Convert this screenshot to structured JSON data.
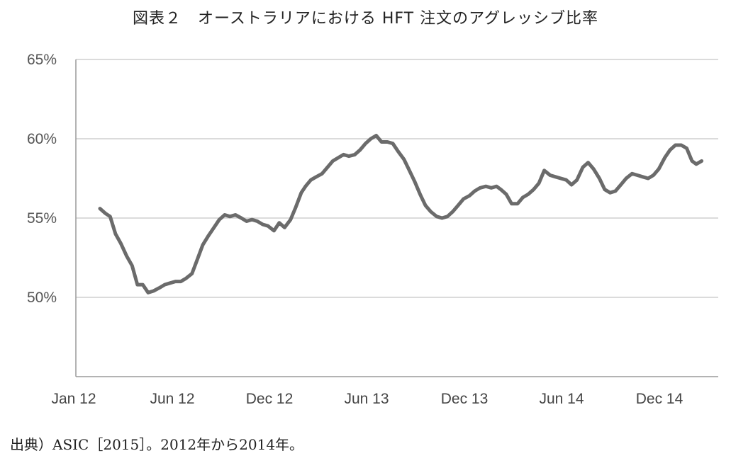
{
  "title": "図表２　オーストラリアにおける HFT 注文のアグレッシブ比率",
  "source": "出典）ASIC［2015］。2012年から2014年。",
  "chart_data": {
    "type": "line",
    "title": "",
    "xlabel": "",
    "ylabel": "",
    "ylim": [
      45,
      65
    ],
    "y_ticks": [
      50,
      55,
      60,
      65
    ],
    "y_tick_labels": [
      "50%",
      "55%",
      "60%",
      "65%"
    ],
    "x_ticks": [
      "Jan 12",
      "Jun 12",
      "Dec 12",
      "Jun 13",
      "Dec 13",
      "Jun 14",
      "Dec 14"
    ],
    "grid": true,
    "line_color": "#6b6b6b",
    "series": [
      {
        "name": "",
        "x": [
          "2012-02-15",
          "2012-02-25",
          "2012-03-05",
          "2012-03-15",
          "2012-03-25",
          "2012-04-05",
          "2012-04-15",
          "2012-04-25",
          "2012-05-05",
          "2012-05-15",
          "2012-05-25",
          "2012-06-05",
          "2012-06-15",
          "2012-06-25",
          "2012-07-05",
          "2012-07-15",
          "2012-07-25",
          "2012-08-05",
          "2012-08-15",
          "2012-08-25",
          "2012-09-05",
          "2012-09-15",
          "2012-09-25",
          "2012-10-05",
          "2012-10-15",
          "2012-10-25",
          "2012-11-05",
          "2012-11-15",
          "2012-11-25",
          "2012-12-05",
          "2012-12-15",
          "2012-12-25",
          "2013-01-05",
          "2013-01-15",
          "2013-01-25",
          "2013-02-05",
          "2013-02-15",
          "2013-02-25",
          "2013-03-05",
          "2013-03-15",
          "2013-03-25",
          "2013-04-05",
          "2013-04-15",
          "2013-04-25",
          "2013-05-05",
          "2013-05-15",
          "2013-05-25",
          "2013-06-05",
          "2013-06-15",
          "2013-06-25",
          "2013-07-05",
          "2013-07-15",
          "2013-07-25",
          "2013-08-05",
          "2013-08-15",
          "2013-08-25",
          "2013-09-05",
          "2013-09-15",
          "2013-09-25",
          "2013-10-05",
          "2013-10-15",
          "2013-10-25",
          "2013-11-05",
          "2013-11-15",
          "2013-11-25",
          "2013-12-05",
          "2013-12-15",
          "2013-12-25",
          "2014-01-05",
          "2014-01-15",
          "2014-01-25",
          "2014-02-05",
          "2014-02-15",
          "2014-02-25",
          "2014-03-05",
          "2014-03-15",
          "2014-03-25",
          "2014-04-05",
          "2014-04-15",
          "2014-04-25",
          "2014-05-05",
          "2014-05-15",
          "2014-05-25",
          "2014-06-05",
          "2014-06-15",
          "2014-06-25",
          "2014-07-05",
          "2014-07-15",
          "2014-07-25",
          "2014-08-05",
          "2014-08-15",
          "2014-08-25",
          "2014-09-05",
          "2014-09-15",
          "2014-09-25",
          "2014-10-05",
          "2014-10-15",
          "2014-10-25",
          "2014-11-05",
          "2014-11-15",
          "2014-11-25",
          "2014-12-05",
          "2014-12-15",
          "2014-12-25",
          "2015-01-05",
          "2015-01-15",
          "2015-01-25",
          "2015-02-05",
          "2015-02-15",
          "2015-02-25",
          "2015-03-05",
          "2015-03-15"
        ],
        "y": [
          55.6,
          55.3,
          55.1,
          54.0,
          53.4,
          52.6,
          52.0,
          50.8,
          50.8,
          50.3,
          50.4,
          50.6,
          50.8,
          50.9,
          51.0,
          51.0,
          51.2,
          51.5,
          52.4,
          53.3,
          53.9,
          54.4,
          54.9,
          55.2,
          55.1,
          55.2,
          55.0,
          54.8,
          54.9,
          54.8,
          54.6,
          54.5,
          54.2,
          54.7,
          54.4,
          54.9,
          55.7,
          56.6,
          57.0,
          57.4,
          57.6,
          57.8,
          58.2,
          58.6,
          58.8,
          59.0,
          58.9,
          59.0,
          59.3,
          59.7,
          60.0,
          60.2,
          59.8,
          59.8,
          59.7,
          59.2,
          58.7,
          58.0,
          57.3,
          56.5,
          55.8,
          55.4,
          55.1,
          55.0,
          55.1,
          55.4,
          55.8,
          56.2,
          56.4,
          56.7,
          56.9,
          57.0,
          56.9,
          57.0,
          56.8,
          56.5,
          55.9,
          55.9,
          56.3,
          56.5,
          56.8,
          57.2,
          58.0,
          57.7,
          57.6,
          57.5,
          57.4,
          57.1,
          57.4,
          58.2,
          58.5,
          58.1,
          57.5,
          56.8,
          56.6,
          56.7,
          57.1,
          57.5,
          57.8,
          57.7,
          57.6,
          57.5,
          57.7,
          58.1,
          58.8,
          59.3,
          59.6,
          59.6,
          59.4,
          58.6,
          58.4,
          58.6
        ]
      }
    ]
  }
}
